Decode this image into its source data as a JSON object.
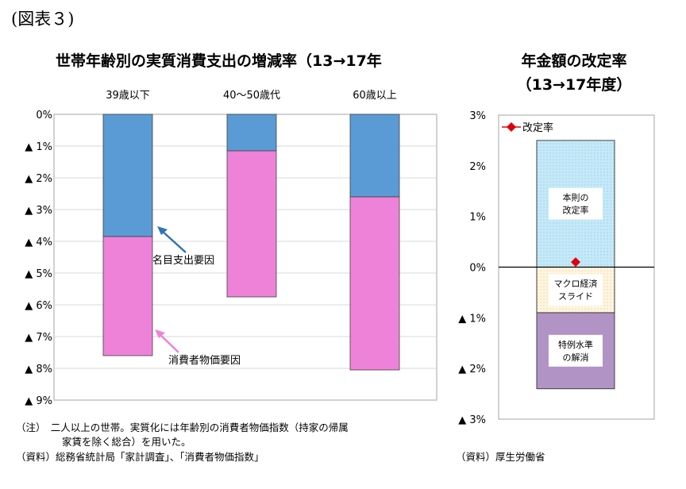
{
  "figure_label": "(図表３)",
  "notes": {
    "left_line1": "（注）　二人以上の世帯。実質化には年齢別の消費者物価指数（持家の帰属",
    "left_line2": "家賃を除く総合）を用いた。",
    "left_source": "（資料）総務省統計局「家計調査」、「消費者物価指数」",
    "right_source": "（資料）厚生労働省"
  },
  "chart_data": [
    {
      "type": "bar",
      "stacked": true,
      "title": "世帯年齢別の実質消費支出の増減率（13→17年",
      "categories": [
        "39歳以下",
        "40〜50歳代",
        "60歳以上"
      ],
      "series": [
        {
          "name": "名目支出要因",
          "values": [
            -3.85,
            -1.15,
            -2.6
          ],
          "color": "#5b9bd5"
        },
        {
          "name": "消費者物価要因",
          "values": [
            -3.75,
            -4.6,
            -5.45
          ],
          "color": "#ee82d9"
        }
      ],
      "ylim": [
        -9,
        0
      ],
      "yticks": [
        0,
        -1,
        -2,
        -3,
        -4,
        -5,
        -6,
        -7,
        -8,
        -9
      ],
      "ytick_labels": [
        "0%",
        "▲ 1%",
        "▲ 2%",
        "▲ 3%",
        "▲ 4%",
        "▲ 5%",
        "▲ 6%",
        "▲ 7%",
        "▲ 8%",
        "▲ 9%"
      ],
      "grid": true,
      "categories_position": "top",
      "annotations": [
        {
          "text": "名目支出要因",
          "color": "#2e75b6"
        },
        {
          "text": "消費者物価要因",
          "color": "#ee82d9"
        }
      ]
    },
    {
      "type": "bar",
      "stacked": true,
      "title": "年金額の改定率",
      "subtitle": "（13→17年度）",
      "segments": [
        {
          "label": "本則の\n改定率",
          "from": 0,
          "to": 2.5,
          "fill": "#c5e9f7",
          "pattern": "dots"
        },
        {
          "label": "マクロ経済\nスライド",
          "from": -0.9,
          "to": 0,
          "fill": "#fff3d9",
          "pattern": "dots"
        },
        {
          "label": "特例水準\nの解消",
          "from": -2.4,
          "to": -0.9,
          "fill": "#b293c6",
          "pattern": "none"
        }
      ],
      "marker": {
        "name": "改定率",
        "value": 0.1,
        "color": "#e0000b"
      },
      "ylim": [
        -3,
        3
      ],
      "yticks": [
        3,
        2,
        1,
        0,
        -1,
        -2,
        -3
      ],
      "ytick_labels": [
        "3%",
        "2%",
        "1%",
        "0%",
        "▲ 1%",
        "▲ 2%",
        "▲ 3%"
      ],
      "grid": false,
      "legend": "top-left"
    }
  ]
}
